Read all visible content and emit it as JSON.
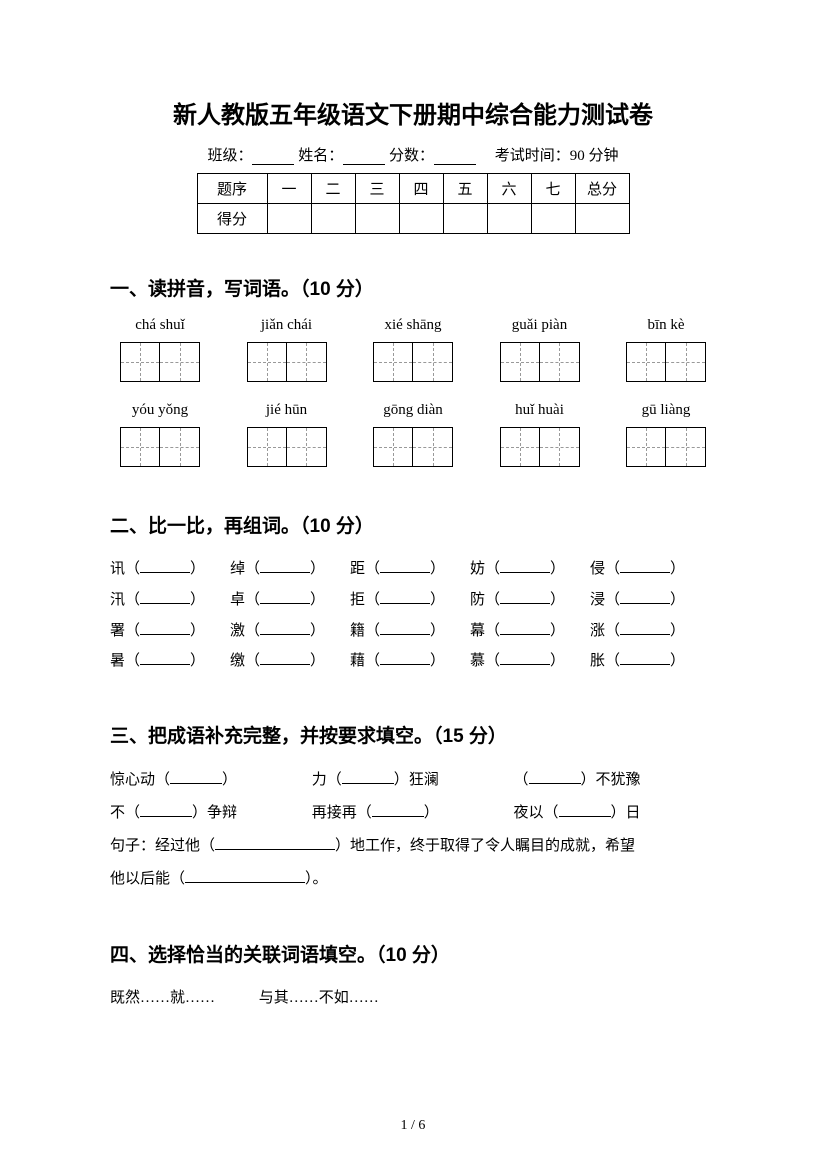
{
  "title": "新人教版五年级语文下册期中综合能力测试卷",
  "meta": {
    "class_label": "班级：",
    "name_label": "姓名：",
    "score_label": "分数：",
    "time_label": "考试时间：90 分钟"
  },
  "score_table": {
    "row_label": "题序",
    "score_row_label": "得分",
    "cols": [
      "一",
      "二",
      "三",
      "四",
      "五",
      "六",
      "七"
    ],
    "total": "总分"
  },
  "s1": {
    "heading": "一、读拼音，写词语。（10 分）",
    "row1": [
      "chá shuǐ",
      "jiǎn chái",
      "xié shāng",
      "guǎi piàn",
      "bīn kè"
    ],
    "row2": [
      "yóu yǒng",
      "jié hūn",
      "gōng diàn",
      "huǐ huài",
      "gū liàng"
    ]
  },
  "s2": {
    "heading": "二、比一比，再组词。（10 分）",
    "rows": [
      [
        "讯",
        "绰",
        "距",
        "妨",
        "侵"
      ],
      [
        "汛",
        "卓",
        "拒",
        "防",
        "浸"
      ],
      [
        "署",
        "激",
        "籍",
        "幕",
        "涨"
      ],
      [
        "暑",
        "缴",
        "藉",
        "慕",
        "胀"
      ]
    ]
  },
  "s3": {
    "heading": "三、把成语补充完整，并按要求填空。（15 分）",
    "row1": {
      "a": "惊心动",
      "b": "力",
      "b_tail": "狂澜",
      "c_tail": "不犹豫"
    },
    "row2": {
      "a": "不",
      "a_tail": "争辩",
      "b": "再接再",
      "c": "夜以",
      "c_tail": "日"
    },
    "sentence_pre": "句子：经过他",
    "sentence_mid": "地工作，终于取得了令人瞩目的成就，希望",
    "sentence_line2_pre": "他以后能",
    "sentence_line2_post": "。"
  },
  "s4": {
    "heading": "四、选择恰当的关联词语填空。（10 分）",
    "opt1": "既然……就……",
    "opt2": "与其……不如……"
  },
  "footer": "1 / 6"
}
